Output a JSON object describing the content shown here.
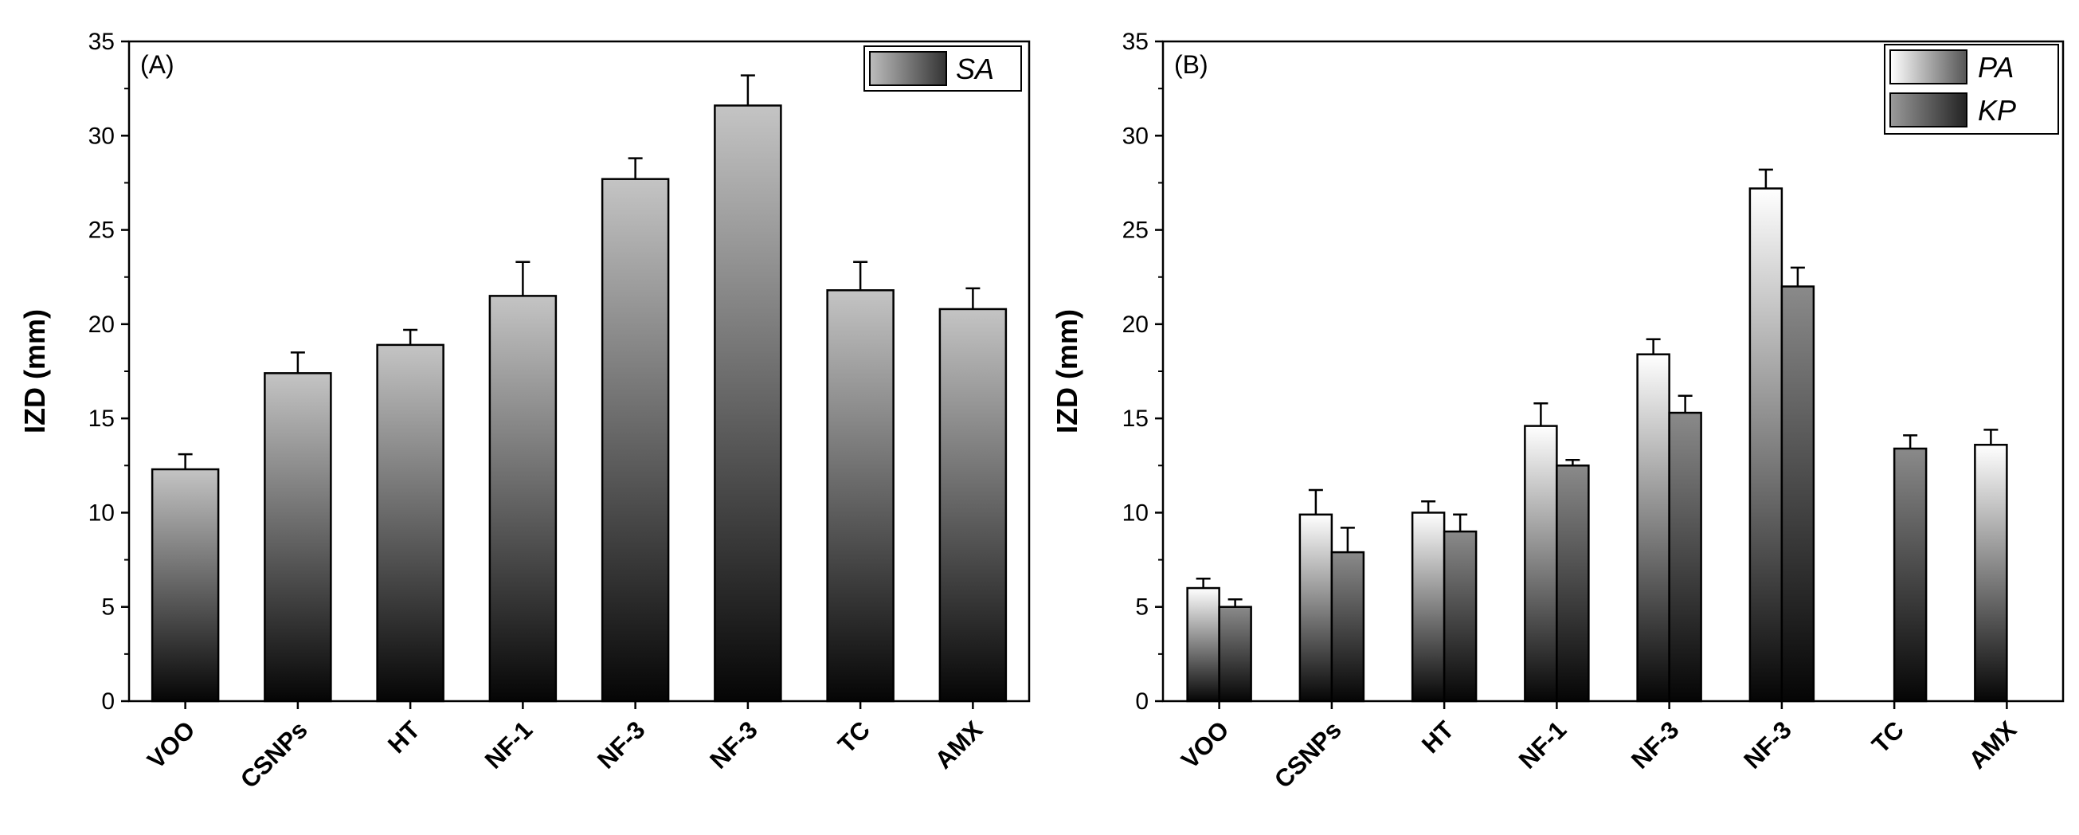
{
  "chart_data": [
    {
      "type": "bar",
      "panel_label": "(A)",
      "ylabel": "IZD (mm)",
      "xlabel": "",
      "ylim": [
        0,
        35
      ],
      "yticks": [
        0,
        5,
        10,
        15,
        20,
        25,
        30,
        35
      ],
      "categories": [
        "VOO",
        "CSNPs",
        "HT",
        "NF-1",
        "NF-3",
        "NF-3",
        "TC",
        "AMX"
      ],
      "legend_position": "top-right",
      "series": [
        {
          "name": "SA",
          "values": [
            12.3,
            17.4,
            18.9,
            21.5,
            27.7,
            31.6,
            21.8,
            20.8
          ],
          "errors": [
            0.8,
            1.1,
            0.8,
            1.8,
            1.1,
            1.6,
            1.5,
            1.1
          ],
          "gradient_top": "#c4c4c4",
          "gradient_bottom": "#050505"
        }
      ]
    },
    {
      "type": "bar",
      "panel_label": "(B)",
      "ylabel": "IZD (mm)",
      "xlabel": "",
      "ylim": [
        0,
        35
      ],
      "yticks": [
        0,
        5,
        10,
        15,
        20,
        25,
        30,
        35
      ],
      "categories": [
        "VOO",
        "CSNPs",
        "HT",
        "NF-1",
        "NF-3",
        "NF-3",
        "TC",
        "AMX"
      ],
      "legend_position": "top-right",
      "series": [
        {
          "name": "PA",
          "values": [
            6.0,
            9.9,
            10.0,
            14.6,
            18.4,
            27.2,
            null,
            13.6
          ],
          "errors": [
            0.5,
            1.3,
            0.6,
            1.2,
            0.8,
            1.0,
            null,
            0.8
          ],
          "gradient_top": "#ffffff",
          "gradient_bottom": "#050505"
        },
        {
          "name": "KP",
          "values": [
            5.0,
            7.9,
            9.0,
            12.5,
            15.3,
            22.0,
            13.4,
            null
          ],
          "errors": [
            0.4,
            1.3,
            0.9,
            0.3,
            0.9,
            1.0,
            0.7,
            null
          ],
          "gradient_top": "#8a8a8a",
          "gradient_bottom": "#050505"
        }
      ]
    }
  ]
}
